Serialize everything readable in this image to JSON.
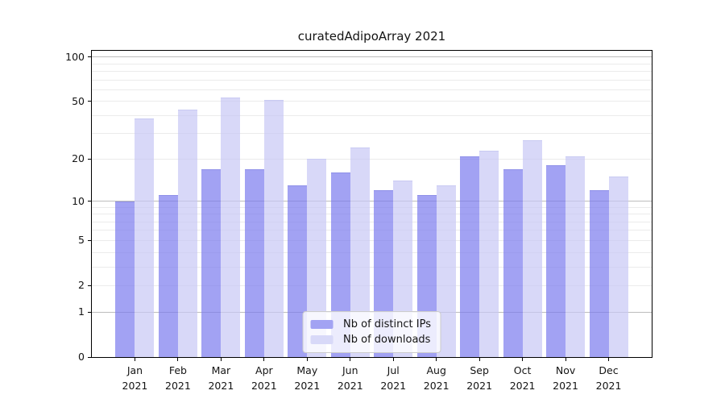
{
  "title": "curatedAdipoArray 2021",
  "chart_data": {
    "type": "bar",
    "title": "curatedAdipoArray 2021",
    "categories": [
      "Jan 2021",
      "Feb 2021",
      "Mar 2021",
      "Apr 2021",
      "May 2021",
      "Jun 2021",
      "Jul 2021",
      "Aug 2021",
      "Sep 2021",
      "Oct 2021",
      "Nov 2021",
      "Dec 2021"
    ],
    "series": [
      {
        "name": "Nb of distinct IPs",
        "color": "#a2a3f3",
        "edge_color": "#8f90e8",
        "values": [
          10,
          11,
          17,
          17,
          13,
          16,
          12,
          11,
          21,
          17,
          18,
          12
        ]
      },
      {
        "name": "Nb of downloads",
        "color": "#d8d9f8",
        "edge_color": "#c9caf2",
        "values": [
          38,
          44,
          53,
          51,
          20,
          24,
          14,
          13,
          23,
          27,
          21,
          15
        ]
      }
    ],
    "xlabel": "",
    "ylabel": "",
    "yscale": "symlog",
    "ylim": [
      0,
      110
    ],
    "y_ticks": [
      0,
      1,
      2,
      5,
      10,
      20,
      50,
      100
    ],
    "y_gridlines_major": [
      1,
      10,
      100
    ],
    "y_gridlines_minor": [
      2,
      3,
      4,
      5,
      6,
      7,
      8,
      9,
      20,
      30,
      40,
      50,
      60,
      70,
      80,
      90
    ],
    "grid": true,
    "legend_position": "bottom-center"
  },
  "legend": {
    "items": [
      {
        "label": "Nb of distinct IPs",
        "color": "#a2a3f3"
      },
      {
        "label": "Nb of downloads",
        "color": "#d8d9f8"
      }
    ]
  },
  "colors": {
    "grid_minor": "#ebebeb",
    "grid_major": "#bdbdbd",
    "axis": "#000000",
    "background": "#ffffff"
  }
}
